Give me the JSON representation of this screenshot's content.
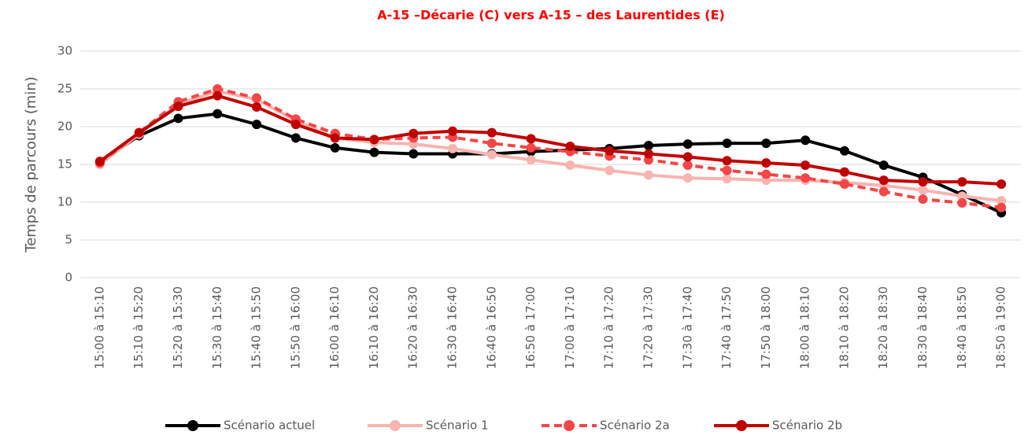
{
  "chart_data": {
    "type": "line",
    "title": "A-15 –Décarie (C) vers A-15 – des Laurentides (E)",
    "y_label": "Temps de parcours (min)",
    "categories": [
      "15:00 à 15:10",
      "15:10 à 15:20",
      "15:20 à 15:30",
      "15:30 à 15:40",
      "15:40 à 15:50",
      "15:50 à 16:00",
      "16:00 à 16:10",
      "16:10 à 16:20",
      "16:20 à 16:30",
      "16:30 à 16:40",
      "16:40 à 16:50",
      "16:50 à 17:00",
      "17:00 à 17:10",
      "17:10 à 17:20",
      "17:20 à 17:30",
      "17:30 à 17:40",
      "17:40 à 17:50",
      "17:50 à 18:00",
      "18:00 à 18:10",
      "18:10 à 18:20",
      "18:20 à 18:30",
      "18:30 à 18:40",
      "18:40 à 18:50",
      "18:50 à 19:00"
    ],
    "series": [
      {
        "name": "Scénario actuel",
        "color": "#000000",
        "line_style": "solid",
        "values": [
          15.3,
          18.8,
          21.1,
          21.7,
          20.3,
          18.5,
          17.2,
          16.6,
          16.4,
          16.4,
          16.4,
          16.7,
          16.9,
          17.1,
          17.5,
          17.7,
          17.8,
          17.8,
          18.2,
          16.8,
          14.9,
          13.3,
          11.0,
          8.6
        ]
      },
      {
        "name": "Scénario 1",
        "color": "#f8b4b0",
        "line_style": "solid",
        "values": [
          15.0,
          19.0,
          23.0,
          24.7,
          23.6,
          20.8,
          18.5,
          17.9,
          17.7,
          17.1,
          16.3,
          15.6,
          14.9,
          14.2,
          13.6,
          13.2,
          13.1,
          12.9,
          12.9,
          12.6,
          12.2,
          11.6,
          10.8,
          10.2
        ]
      },
      {
        "name": "Scénario 2a",
        "color": "#f44646",
        "line_style": "dashed",
        "values": [
          15.2,
          19.2,
          23.3,
          25.0,
          23.8,
          21.0,
          19.1,
          18.3,
          18.5,
          18.6,
          17.8,
          17.2,
          16.7,
          16.1,
          15.6,
          14.9,
          14.2,
          13.7,
          13.2,
          12.4,
          11.4,
          10.4,
          9.9,
          9.3
        ]
      },
      {
        "name": "Scénario 2b",
        "color": "#c00000",
        "line_style": "solid",
        "values": [
          15.4,
          19.2,
          22.7,
          24.1,
          22.6,
          20.3,
          18.5,
          18.3,
          19.1,
          19.4,
          19.2,
          18.4,
          17.4,
          16.8,
          16.4,
          16.0,
          15.5,
          15.2,
          14.9,
          14.0,
          12.9,
          12.7,
          12.7,
          12.4
        ]
      }
    ],
    "ylim": [
      0,
      30
    ],
    "yticks": [
      0,
      5,
      10,
      15,
      20,
      25,
      30
    ],
    "grid": true,
    "legend": "bottom"
  }
}
